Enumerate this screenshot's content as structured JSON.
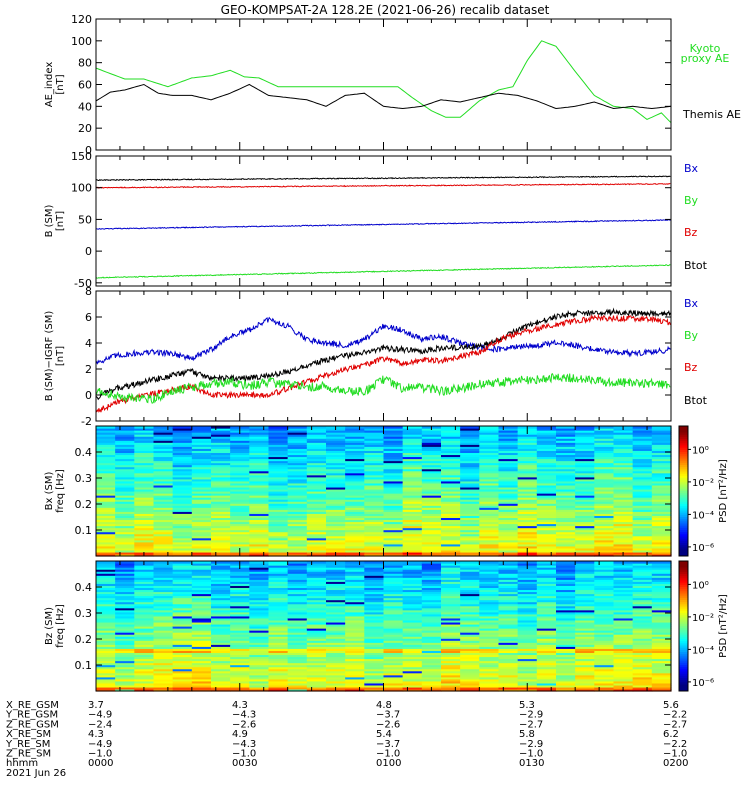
{
  "title": "GEO-KOMPSAT-2A 128.2E (2021-06-26) recalib dataset",
  "colors": {
    "black": "#000000",
    "red": "#e00000",
    "green": "#22dd22",
    "blue": "#0000cc",
    "kyoto": "#22dd22"
  },
  "chart_data": [
    {
      "type": "line",
      "ylabel_lines": [
        "AE_index",
        "[nT]"
      ],
      "ylim": [
        0,
        120
      ],
      "yticks": [
        0,
        20,
        40,
        60,
        80,
        100,
        120
      ],
      "x_range_minutes": [
        0,
        120
      ],
      "legend": [
        {
          "text": "Kyoto",
          "color": "#22dd22"
        },
        {
          "text": "proxy AE",
          "color": "#22dd22"
        },
        {
          "text": "Themis AE",
          "color": "#000000"
        }
      ],
      "series": [
        {
          "name": "Kyoto proxy AE",
          "color": "#22dd22",
          "x": [
            0,
            3,
            6,
            10,
            15,
            20,
            24,
            28,
            31,
            34,
            38,
            42,
            46,
            52,
            56,
            60,
            63,
            66,
            70,
            73,
            76,
            80,
            84,
            87,
            90,
            93,
            96,
            100,
            104,
            108,
            112,
            115,
            118,
            120
          ],
          "y": [
            75,
            70,
            65,
            65,
            58,
            66,
            68,
            73,
            67,
            66,
            58,
            58,
            58,
            58,
            58,
            58,
            58,
            48,
            36,
            30,
            30,
            45,
            55,
            58,
            82,
            100,
            95,
            72,
            50,
            40,
            38,
            28,
            34,
            25
          ]
        },
        {
          "name": "Themis AE",
          "color": "#000000",
          "x": [
            0,
            3,
            6,
            10,
            13,
            16,
            20,
            24,
            28,
            32,
            36,
            40,
            44,
            48,
            52,
            56,
            60,
            64,
            68,
            72,
            76,
            80,
            84,
            88,
            92,
            96,
            100,
            104,
            108,
            112,
            116,
            120
          ],
          "y": [
            45,
            53,
            55,
            60,
            52,
            50,
            50,
            46,
            52,
            60,
            50,
            48,
            46,
            40,
            50,
            52,
            40,
            38,
            40,
            46,
            44,
            48,
            52,
            50,
            45,
            38,
            40,
            44,
            38,
            40,
            38,
            40
          ]
        }
      ]
    },
    {
      "type": "line",
      "ylabel_lines": [
        "B (SM)",
        "[nT]"
      ],
      "ylim": [
        -55,
        150
      ],
      "yticks": [
        -50,
        0,
        50,
        100,
        150
      ],
      "legend": [
        {
          "text": "Bx",
          "color": "#0000cc"
        },
        {
          "text": "By",
          "color": "#22dd22"
        },
        {
          "text": "Bz",
          "color": "#e00000"
        },
        {
          "text": "Btot",
          "color": "#000000"
        }
      ],
      "series": [
        {
          "name": "Btot",
          "color": "#000000",
          "x": [
            0,
            120
          ],
          "y": [
            112,
            118
          ]
        },
        {
          "name": "Bz",
          "color": "#e00000",
          "x": [
            0,
            120
          ],
          "y": [
            100,
            106
          ]
        },
        {
          "name": "Bx",
          "color": "#0000cc",
          "x": [
            0,
            120
          ],
          "y": [
            35,
            49
          ]
        },
        {
          "name": "By",
          "color": "#22dd22",
          "x": [
            0,
            120
          ],
          "y": [
            -42,
            -22
          ]
        }
      ]
    },
    {
      "type": "line",
      "ylabel_lines": [
        "B (SM)−IGRF (SM)",
        "[nT]"
      ],
      "ylim": [
        -2,
        8
      ],
      "yticks": [
        -2,
        0,
        2,
        4,
        6,
        8
      ],
      "legend": [
        {
          "text": "Bx",
          "color": "#0000cc"
        },
        {
          "text": "By",
          "color": "#22dd22"
        },
        {
          "text": "Bz",
          "color": "#e00000"
        },
        {
          "text": "Btot",
          "color": "#000000"
        }
      ],
      "series": [
        {
          "name": "Bx",
          "color": "#0000cc",
          "x": [
            0,
            4,
            8,
            12,
            16,
            20,
            24,
            28,
            32,
            36,
            40,
            44,
            48,
            52,
            56,
            60,
            64,
            68,
            72,
            76,
            80,
            84,
            88,
            92,
            96,
            100,
            104,
            108,
            112,
            116,
            120
          ],
          "y": [
            2.5,
            3,
            3.2,
            3.3,
            3.2,
            2.8,
            3.5,
            4.5,
            5,
            5.8,
            5.3,
            4.3,
            4,
            3.8,
            4.2,
            5.3,
            5,
            4.3,
            4.5,
            4,
            3.7,
            3.5,
            3.7,
            3.8,
            4,
            3.8,
            3.5,
            3.3,
            3.2,
            3.3,
            3.5
          ]
        },
        {
          "name": "Btot",
          "color": "#000000",
          "x": [
            0,
            4,
            8,
            12,
            16,
            20,
            24,
            28,
            32,
            36,
            40,
            44,
            48,
            52,
            56,
            60,
            64,
            68,
            72,
            76,
            80,
            84,
            88,
            92,
            96,
            100,
            104,
            108,
            112,
            116,
            120
          ],
          "y": [
            -0.2,
            0.5,
            0.8,
            1.2,
            1.5,
            1.8,
            1.3,
            1.3,
            1.3,
            1.5,
            1.8,
            2.3,
            2.7,
            3,
            3.3,
            3.6,
            3.5,
            3.4,
            3.6,
            3.7,
            3.7,
            4.3,
            5,
            5.6,
            6,
            6.3,
            6.3,
            6.4,
            6.3,
            6.3,
            6.3
          ]
        },
        {
          "name": "Bz",
          "color": "#e00000",
          "x": [
            0,
            4,
            8,
            12,
            16,
            20,
            24,
            28,
            32,
            36,
            40,
            44,
            48,
            52,
            56,
            60,
            64,
            68,
            72,
            76,
            80,
            84,
            88,
            92,
            96,
            100,
            104,
            108,
            112,
            116,
            120
          ],
          "y": [
            -1.3,
            -0.6,
            -0.2,
            0.1,
            0.4,
            0.7,
            0,
            0,
            0,
            0,
            0.5,
            1,
            1.5,
            2,
            2.3,
            2.8,
            2.4,
            2.7,
            2.6,
            3,
            3.3,
            4.2,
            4.8,
            5.1,
            5.4,
            5.7,
            5.9,
            5.9,
            5.9,
            5.8,
            5.5
          ]
        },
        {
          "name": "By",
          "color": "#22dd22",
          "x": [
            0,
            4,
            8,
            12,
            16,
            20,
            24,
            28,
            32,
            36,
            40,
            44,
            48,
            52,
            56,
            60,
            64,
            68,
            72,
            76,
            80,
            84,
            88,
            92,
            96,
            100,
            104,
            108,
            112,
            116,
            120
          ],
          "y": [
            0.3,
            0,
            -0.3,
            -0.3,
            0.3,
            0.6,
            0.9,
            1,
            0.7,
            1,
            0.8,
            0.6,
            0.7,
            0.3,
            0.3,
            1.2,
            0.5,
            0.6,
            0.3,
            0.5,
            0.8,
            1,
            1.1,
            1.2,
            1.4,
            1.3,
            1.1,
            1.0,
            0.9,
            0.9,
            0.7
          ]
        }
      ]
    },
    {
      "type": "heatmap",
      "ylabel_lines": [
        "Bx (SM)",
        "freq [Hz]"
      ],
      "ylim": [
        0,
        0.5
      ],
      "yticks": [
        0.1,
        0.2,
        0.3,
        0.4
      ],
      "colorbar_label": "PSD [nT²/Hz]",
      "colorbar_ticks": [
        "10⁰",
        "10⁻²",
        "10⁻⁴",
        "10⁻⁶"
      ],
      "seed": 11
    },
    {
      "type": "heatmap",
      "ylabel_lines": [
        "Bz (SM)",
        "freq [Hz]"
      ],
      "ylim": [
        0,
        0.5
      ],
      "yticks": [
        0.1,
        0.2,
        0.3,
        0.4
      ],
      "colorbar_label": "PSD [nT²/Hz]",
      "colorbar_ticks": [
        "10⁰",
        "10⁻²",
        "10⁻⁴",
        "10⁻⁶"
      ],
      "seed": 29
    }
  ],
  "ephemeris": {
    "row_labels": [
      "X_RE_GSM",
      "Y_RE_GSM",
      "Z_RE_GSM",
      "X_RE_SM",
      "Y_RE_SM",
      "Z_RE_SM",
      "hhmm",
      "2021 Jun 26"
    ],
    "columns": [
      [
        "3.7",
        "−4.9",
        "−2.4",
        "4.3",
        "−4.9",
        "−1.0",
        "0000"
      ],
      [
        "4.3",
        "−4.3",
        "−2.6",
        "4.9",
        "−4.3",
        "−1.0",
        "0030"
      ],
      [
        "4.8",
        "−3.7",
        "−2.6",
        "5.4",
        "−3.7",
        "−1.0",
        "0100"
      ],
      [
        "5.3",
        "−2.9",
        "−2.7",
        "5.8",
        "−2.9",
        "−1.0",
        "0130"
      ],
      [
        "5.6",
        "−2.2",
        "−2.7",
        "6.2",
        "−2.2",
        "−1.0",
        "0200"
      ]
    ]
  }
}
